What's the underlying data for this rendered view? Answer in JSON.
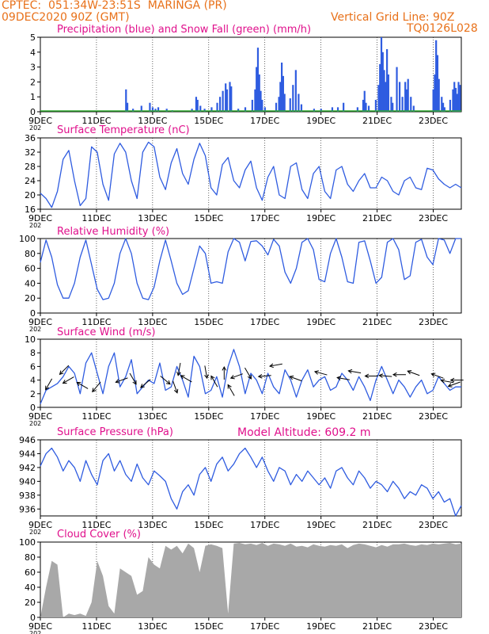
{
  "header": {
    "line1_left": "CPTEC:  051:34W-23:51S  MARINGA (PR)",
    "line2_left": "09DEC2020 90Z (GMT)",
    "grid_line_note": "Vertical Grid Line: 90Z",
    "model_code": "TQ0126L028",
    "model_altitude": "Model Altitude: 609.2 m"
  },
  "x_axis": {
    "tick_labels": [
      "9DEC",
      "11DEC",
      "13DEC",
      "15DEC",
      "17DEC",
      "19DEC",
      "21DEC",
      "23DEC"
    ],
    "tick_days": [
      0,
      2,
      4,
      6,
      8,
      10,
      12,
      14
    ],
    "range_days": [
      0,
      15
    ],
    "year_stub": "202"
  },
  "colors": {
    "series": "#2f5ce0",
    "snow": "#2eaa2e",
    "cloud": "#a8a8a8",
    "title": "#e0108c",
    "header": "#e8711a",
    "wind_arrow": "#000000"
  },
  "chart_data": [
    {
      "type": "bar",
      "title": "Precipitation (blue) and Snow Fall (green) (mm/h)",
      "ylim": [
        0,
        5
      ],
      "yticks": [
        "0",
        "1",
        "2",
        "3",
        "4",
        "5"
      ],
      "yticks_values": [
        0,
        1,
        2,
        3,
        4,
        5
      ],
      "series": [
        {
          "values_day_mm": [
            [
              3.05,
              1.5
            ],
            [
              3.1,
              0.6
            ],
            [
              3.3,
              0.2
            ],
            [
              3.6,
              0.4
            ],
            [
              3.9,
              0.6
            ],
            [
              4.0,
              0.3
            ],
            [
              4.1,
              0.2
            ],
            [
              4.2,
              0.3
            ],
            [
              4.5,
              0.2
            ],
            [
              4.7,
              0.1
            ],
            [
              5.4,
              0.2
            ],
            [
              5.55,
              1.0
            ],
            [
              5.6,
              0.8
            ],
            [
              5.7,
              0.4
            ],
            [
              5.85,
              0.2
            ],
            [
              6.1,
              0.3
            ],
            [
              6.3,
              0.6
            ],
            [
              6.4,
              1.0
            ],
            [
              6.5,
              1.4
            ],
            [
              6.6,
              1.9
            ],
            [
              6.65,
              1.5
            ],
            [
              6.75,
              2.0
            ],
            [
              6.8,
              1.7
            ],
            [
              7.05,
              0.2
            ],
            [
              7.3,
              0.3
            ],
            [
              7.55,
              0.8
            ],
            [
              7.65,
              1.5
            ],
            [
              7.7,
              3.0
            ],
            [
              7.75,
              4.3
            ],
            [
              7.8,
              2.5
            ],
            [
              7.85,
              1.4
            ],
            [
              7.9,
              0.8
            ],
            [
              8.0,
              0.3
            ],
            [
              8.4,
              0.6
            ],
            [
              8.5,
              1.0
            ],
            [
              8.55,
              2.0
            ],
            [
              8.6,
              3.3
            ],
            [
              8.65,
              2.4
            ],
            [
              8.7,
              1.2
            ],
            [
              8.9,
              0.9
            ],
            [
              9.0,
              1.8
            ],
            [
              9.1,
              2.8
            ],
            [
              9.2,
              1.2
            ],
            [
              9.3,
              0.5
            ],
            [
              9.75,
              0.2
            ],
            [
              10.0,
              0.2
            ],
            [
              10.4,
              0.3
            ],
            [
              10.6,
              0.3
            ],
            [
              10.8,
              0.6
            ],
            [
              11.3,
              0.3
            ],
            [
              11.5,
              0.8
            ],
            [
              11.55,
              1.4
            ],
            [
              11.6,
              0.6
            ],
            [
              11.7,
              0.4
            ],
            [
              11.95,
              0.8
            ],
            [
              12.05,
              1.8
            ],
            [
              12.1,
              3.2
            ],
            [
              12.15,
              5.0
            ],
            [
              12.2,
              4.0
            ],
            [
              12.25,
              2.8
            ],
            [
              12.3,
              2.0
            ],
            [
              12.35,
              4.2
            ],
            [
              12.4,
              2.5
            ],
            [
              12.5,
              1.0
            ],
            [
              12.55,
              0.6
            ],
            [
              12.7,
              3.0
            ],
            [
              12.8,
              2.0
            ],
            [
              12.9,
              1.0
            ],
            [
              13.0,
              2.0
            ],
            [
              13.05,
              1.5
            ],
            [
              13.1,
              2.2
            ],
            [
              13.2,
              1.0
            ],
            [
              13.3,
              0.4
            ],
            [
              14.0,
              1.5
            ],
            [
              14.05,
              2.5
            ],
            [
              14.1,
              4.8
            ],
            [
              14.15,
              3.8
            ],
            [
              14.2,
              2.2
            ],
            [
              14.3,
              1.0
            ],
            [
              14.35,
              0.6
            ],
            [
              14.4,
              0.3
            ],
            [
              14.6,
              0.8
            ],
            [
              14.7,
              1.5
            ],
            [
              14.75,
              2.0
            ],
            [
              14.8,
              1.6
            ],
            [
              14.85,
              1.2
            ],
            [
              14.9,
              2.0
            ],
            [
              14.95,
              1.8
            ]
          ]
        },
        {
          "values_day_mm": [
            [
              0.0,
              0.05
            ],
            [
              2.5,
              0.05
            ],
            [
              5.0,
              0.05
            ],
            [
              7.5,
              0.05
            ],
            [
              10.0,
              0.05
            ],
            [
              12.5,
              0.05
            ],
            [
              15.0,
              0.05
            ]
          ]
        }
      ]
    },
    {
      "type": "line",
      "title": "Surface Temperature (nC)",
      "ylim": [
        16,
        36
      ],
      "yticks": [
        "16",
        "20",
        "24",
        "28",
        "32",
        "36"
      ],
      "yticks_values": [
        16,
        20,
        24,
        28,
        32,
        36
      ],
      "series": [
        {
          "values": [
            20.5,
            19.0,
            16.5,
            21.0,
            30.0,
            32.5,
            24.0,
            17.0,
            19.0,
            33.5,
            32.0,
            23.0,
            18.5,
            31.5,
            34.5,
            32.0,
            24.0,
            19.0,
            32.0,
            34.8,
            33.5,
            25.0,
            21.5,
            29.0,
            33.0,
            26.0,
            23.0,
            30.0,
            34.5,
            31.0,
            22.0,
            20.0,
            28.5,
            30.5,
            24.0,
            22.0,
            27.0,
            29.5,
            22.0,
            18.5,
            25.0,
            28.0,
            20.0,
            19.0,
            28.0,
            29.0,
            21.5,
            19.0,
            26.0,
            28.0,
            21.0,
            19.0,
            27.0,
            28.0,
            23.0,
            21.0,
            24.0,
            26.0,
            22.0,
            22.0,
            25.0,
            24.0,
            21.0,
            20.0,
            24.0,
            25.0,
            22.0,
            21.5,
            27.5,
            27.0,
            24.5,
            23.0,
            22.0,
            23.0,
            22.0
          ]
        }
      ]
    },
    {
      "type": "line",
      "title": "Relative Humidity (%)",
      "ylim": [
        0,
        100
      ],
      "yticks": [
        "0",
        "20",
        "40",
        "60",
        "80",
        "100"
      ],
      "yticks_values": [
        0,
        20,
        40,
        60,
        80,
        100
      ],
      "series": [
        {
          "values": [
            68,
            98,
            75,
            38,
            20,
            20,
            40,
            75,
            98,
            65,
            32,
            18,
            20,
            40,
            80,
            100,
            80,
            40,
            20,
            18,
            35,
            70,
            98,
            70,
            40,
            25,
            30,
            60,
            90,
            80,
            40,
            42,
            40,
            82,
            100,
            95,
            70,
            96,
            97,
            90,
            78,
            99,
            90,
            55,
            40,
            60,
            95,
            100,
            85,
            45,
            42,
            80,
            100,
            75,
            42,
            40,
            95,
            97,
            70,
            40,
            48,
            95,
            100,
            85,
            45,
            50,
            95,
            99,
            75,
            65,
            100,
            98,
            80,
            100,
            100
          ]
        }
      ]
    },
    {
      "type": "line",
      "title": "Surface Wind (m/s)",
      "ylim": [
        0,
        10
      ],
      "yticks": [
        "0",
        "2",
        "4",
        "6",
        "8",
        "10"
      ],
      "yticks_values": [
        0,
        2,
        4,
        6,
        8,
        10
      ],
      "series": [
        {
          "values": [
            0.5,
            2.5,
            3.0,
            3.5,
            4.5,
            6.0,
            5.0,
            2.0,
            6.5,
            8.0,
            5.0,
            2.0,
            6.0,
            8.0,
            3.0,
            4.5,
            7.0,
            2.0,
            3.0,
            4.0,
            3.5,
            6.5,
            2.5,
            3.0,
            6.0,
            4.0,
            1.5,
            7.5,
            6.0,
            2.0,
            2.5,
            4.5,
            1.5,
            6.0,
            8.5,
            6.0,
            2.0,
            5.0,
            4.0,
            2.0,
            5.0,
            3.0,
            2.0,
            5.5,
            4.0,
            1.5,
            4.0,
            5.5,
            3.0,
            4.0,
            4.5,
            2.5,
            3.0,
            5.0,
            4.0,
            2.5,
            4.5,
            3.0,
            1.0,
            4.0,
            6.0,
            4.0,
            2.0,
            4.0,
            3.0,
            1.5,
            3.0,
            4.0,
            2.0,
            2.5,
            4.5,
            3.5,
            2.5,
            3.0,
            3.0
          ]
        }
      ]
    },
    {
      "type": "line",
      "title": "Surface Pressure (hPa)",
      "ylim": [
        935,
        946
      ],
      "yticks": [
        "936",
        "938",
        "940",
        "942",
        "944",
        "946"
      ],
      "yticks_values": [
        936,
        938,
        940,
        942,
        944,
        946
      ],
      "series": [
        {
          "values": [
            942.2,
            944.0,
            944.8,
            943.5,
            941.5,
            943.0,
            942.0,
            940.0,
            943.0,
            941.0,
            939.5,
            943.0,
            944.0,
            941.5,
            943.0,
            941.0,
            940.0,
            942.5,
            940.5,
            939.5,
            941.5,
            940.8,
            940.0,
            937.5,
            936.0,
            938.5,
            939.5,
            938.0,
            941.0,
            942.0,
            940.0,
            942.5,
            943.5,
            941.5,
            942.5,
            944.0,
            944.8,
            943.5,
            942.0,
            943.5,
            941.5,
            940.0,
            942.0,
            941.5,
            939.5,
            941.0,
            940.0,
            941.5,
            940.5,
            939.5,
            940.5,
            939.0,
            941.5,
            942.0,
            940.5,
            939.5,
            941.5,
            940.5,
            939.0,
            940.0,
            939.5,
            938.5,
            940.0,
            939.0,
            937.5,
            938.5,
            938.0,
            939.5,
            939.0,
            937.5,
            938.5,
            937.0,
            937.5,
            935.0,
            936.5
          ]
        }
      ]
    },
    {
      "type": "area",
      "title": "Cloud Cover (%)",
      "ylim": [
        0,
        100
      ],
      "yticks": [
        "0",
        "20",
        "40",
        "60",
        "80",
        "100"
      ],
      "yticks_values": [
        0,
        20,
        40,
        60,
        80,
        100
      ],
      "series": [
        {
          "values": [
            0,
            40,
            75,
            70,
            0,
            5,
            3,
            5,
            2,
            20,
            75,
            55,
            15,
            5,
            65,
            60,
            55,
            30,
            35,
            80,
            70,
            65,
            95,
            90,
            95,
            85,
            98,
            92,
            60,
            95,
            97,
            95,
            92,
            5,
            98,
            99,
            97,
            98,
            96,
            99,
            95,
            98,
            97,
            95,
            98,
            94,
            95,
            93,
            97,
            95,
            94,
            96,
            95,
            97,
            92,
            96,
            98,
            97,
            95,
            93,
            96,
            94,
            97,
            97,
            98,
            96,
            95,
            97,
            96,
            98,
            97,
            98,
            99,
            97,
            98
          ]
        }
      ]
    }
  ],
  "wind_arrows": [
    {
      "day": 0.3,
      "value": 3.4,
      "angle_deg": 240
    },
    {
      "day": 0.85,
      "value": 5.5,
      "angle_deg": 225
    },
    {
      "day": 1.0,
      "value": 4.0,
      "angle_deg": 210
    },
    {
      "day": 1.5,
      "value": 3.2,
      "angle_deg": 150
    },
    {
      "day": 2.0,
      "value": 3.0,
      "angle_deg": 230
    },
    {
      "day": 2.9,
      "value": 4.0,
      "angle_deg": 200
    },
    {
      "day": 3.3,
      "value": 4.2,
      "angle_deg": 300
    },
    {
      "day": 3.75,
      "value": 3.5,
      "angle_deg": 220
    },
    {
      "day": 4.45,
      "value": 4.0,
      "angle_deg": 320
    },
    {
      "day": 4.8,
      "value": 3.0,
      "angle_deg": 290
    },
    {
      "day": 4.95,
      "value": 5.6,
      "angle_deg": 260
    },
    {
      "day": 5.2,
      "value": 4.2,
      "angle_deg": 150
    },
    {
      "day": 5.9,
      "value": 5.2,
      "angle_deg": 280
    },
    {
      "day": 6.2,
      "value": 3.8,
      "angle_deg": 120
    },
    {
      "day": 6.55,
      "value": 5.0,
      "angle_deg": 90
    },
    {
      "day": 6.8,
      "value": 2.5,
      "angle_deg": 120
    },
    {
      "day": 7.0,
      "value": 4.6,
      "angle_deg": 200
    },
    {
      "day": 7.4,
      "value": 5.0,
      "angle_deg": 300
    },
    {
      "day": 8.0,
      "value": 4.6,
      "angle_deg": 185
    },
    {
      "day": 8.4,
      "value": 6.2,
      "angle_deg": 190
    },
    {
      "day": 9.1,
      "value": 4.2,
      "angle_deg": 160
    },
    {
      "day": 10.0,
      "value": 5.0,
      "angle_deg": 165
    },
    {
      "day": 10.8,
      "value": 4.2,
      "angle_deg": 170
    },
    {
      "day": 11.2,
      "value": 5.2,
      "angle_deg": 170
    },
    {
      "day": 11.8,
      "value": 4.6,
      "angle_deg": 180
    },
    {
      "day": 12.3,
      "value": 4.6,
      "angle_deg": 175
    },
    {
      "day": 12.8,
      "value": 4.8,
      "angle_deg": 180
    },
    {
      "day": 13.3,
      "value": 5.0,
      "angle_deg": 160
    },
    {
      "day": 14.15,
      "value": 4.6,
      "angle_deg": 160
    },
    {
      "day": 14.5,
      "value": 3.8,
      "angle_deg": 170
    },
    {
      "day": 14.75,
      "value": 3.4,
      "angle_deg": 200
    },
    {
      "day": 14.85,
      "value": 4.0,
      "angle_deg": 180
    }
  ]
}
